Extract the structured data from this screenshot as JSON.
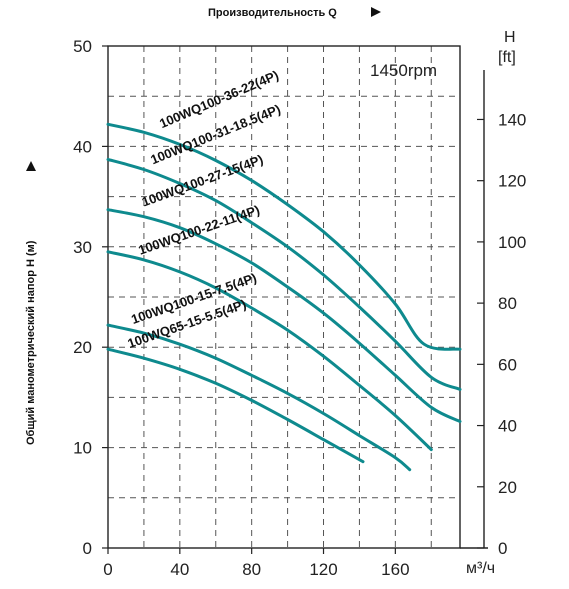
{
  "chart_data": {
    "type": "line",
    "title": "Производительность Q",
    "ylabel": "Общий манометрический напор H (м)",
    "xunit": "м³/ч",
    "y2label": "H",
    "y2unit": "[ft]",
    "annotation": "1450rpm",
    "xlim": [
      0,
      196
    ],
    "ylim": [
      0,
      50
    ],
    "y2lim": [
      0,
      164
    ],
    "x_ticks": [
      "0",
      "40",
      "80",
      "120",
      "160"
    ],
    "y_ticks": [
      "0",
      "10",
      "20",
      "30",
      "40",
      "50"
    ],
    "y2_ticks": [
      "0",
      "20",
      "40",
      "60",
      "80",
      "100",
      "120",
      "140"
    ],
    "grid": true,
    "color": "#0e8a8e",
    "series": [
      {
        "name": "100WQ100-36-22(4P)",
        "x": [
          0,
          20,
          40,
          60,
          80,
          100,
          120,
          140,
          160,
          176,
          196
        ],
        "y": [
          42.2,
          41.4,
          40.2,
          38.6,
          36.6,
          34.2,
          31.5,
          28.2,
          24.3,
          20.3,
          19.8
        ]
      },
      {
        "name": "100WQ100-31-18.5(4P)",
        "x": [
          0,
          20,
          40,
          60,
          80,
          100,
          120,
          140,
          160,
          180,
          196
        ],
        "y": [
          38.7,
          37.7,
          36.3,
          34.6,
          32.4,
          30.0,
          27.2,
          24.0,
          20.6,
          17.0,
          15.8
        ]
      },
      {
        "name": "100WQ100-27-15(4P)",
        "x": [
          0,
          20,
          40,
          60,
          80,
          100,
          120,
          140,
          160,
          180,
          196
        ],
        "y": [
          33.7,
          33.0,
          31.9,
          30.3,
          28.4,
          26.0,
          23.4,
          20.4,
          17.2,
          14.0,
          12.6
        ]
      },
      {
        "name": "100WQ100-22-11(4P)",
        "x": [
          0,
          20,
          40,
          60,
          80,
          100,
          120,
          140,
          160,
          180
        ],
        "y": [
          29.5,
          28.7,
          27.5,
          25.9,
          23.9,
          21.7,
          19.1,
          16.2,
          13.2,
          9.8
        ]
      },
      {
        "name": "100WQ100-15-7.5(4P)",
        "x": [
          0,
          20,
          40,
          60,
          80,
          100,
          120,
          140,
          160,
          168
        ],
        "y": [
          22.2,
          21.4,
          20.3,
          18.9,
          17.2,
          15.4,
          13.4,
          11.2,
          9.0,
          7.8
        ]
      },
      {
        "name": "100WQ65-15-5.5(4P)",
        "x": [
          0,
          20,
          40,
          60,
          80,
          100,
          120,
          142
        ],
        "y": [
          19.8,
          18.9,
          17.8,
          16.4,
          14.7,
          12.8,
          10.8,
          8.6
        ]
      }
    ]
  }
}
